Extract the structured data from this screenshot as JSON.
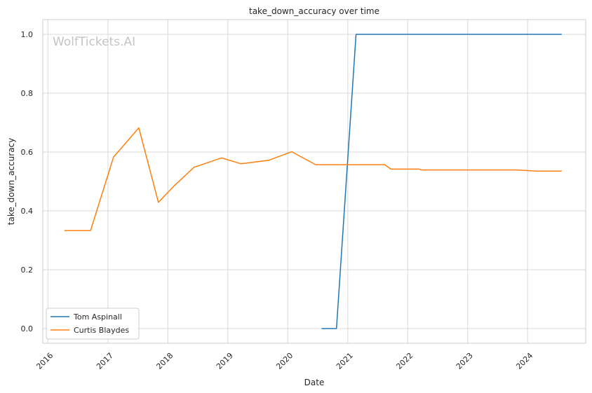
{
  "watermark": "WolfTickets.AI",
  "chart_data": {
    "type": "line",
    "title": "take_down_accuracy over time",
    "xlabel": "Date",
    "ylabel": "take_down_accuracy",
    "x_range": [
      "2015-12-01",
      "2024-12-20"
    ],
    "ylim": [
      -0.05,
      1.05
    ],
    "x_ticks": [
      "2016",
      "2017",
      "2018",
      "2019",
      "2020",
      "2021",
      "2022",
      "2023",
      "2024"
    ],
    "y_ticks": [
      "0.0",
      "0.2",
      "0.4",
      "0.6",
      "0.8",
      "1.0"
    ],
    "grid": true,
    "legend_position": "lower-left",
    "series": [
      {
        "name": "Tom Aspinall",
        "color": "#1f77b4",
        "points": [
          {
            "x": "2020-07-25",
            "y": 0.0
          },
          {
            "x": "2020-10-24",
            "y": 0.0
          },
          {
            "x": "2021-02-20",
            "y": 1.0
          },
          {
            "x": "2024-07-27",
            "y": 1.0
          }
        ]
      },
      {
        "name": "Curtis Blaydes",
        "color": "#ff7f0e",
        "points": [
          {
            "x": "2016-04-10",
            "y": 0.333
          },
          {
            "x": "2016-09-17",
            "y": 0.333
          },
          {
            "x": "2017-02-04",
            "y": 0.583
          },
          {
            "x": "2017-07-08",
            "y": 0.682
          },
          {
            "x": "2017-11-04",
            "y": 0.429
          },
          {
            "x": "2018-02-10",
            "y": 0.486
          },
          {
            "x": "2018-06-09",
            "y": 0.548
          },
          {
            "x": "2018-11-24",
            "y": 0.58
          },
          {
            "x": "2019-03-23",
            "y": 0.56
          },
          {
            "x": "2019-09-07",
            "y": 0.572
          },
          {
            "x": "2020-01-25",
            "y": 0.601
          },
          {
            "x": "2020-06-20",
            "y": 0.557
          },
          {
            "x": "2021-08-14",
            "y": 0.557
          },
          {
            "x": "2021-09-20",
            "y": 0.542
          },
          {
            "x": "2022-03-12",
            "y": 0.542
          },
          {
            "x": "2022-03-26",
            "y": 0.539
          },
          {
            "x": "2023-10-28",
            "y": 0.539
          },
          {
            "x": "2024-02-25",
            "y": 0.535
          },
          {
            "x": "2024-07-27",
            "y": 0.535
          }
        ]
      }
    ]
  }
}
